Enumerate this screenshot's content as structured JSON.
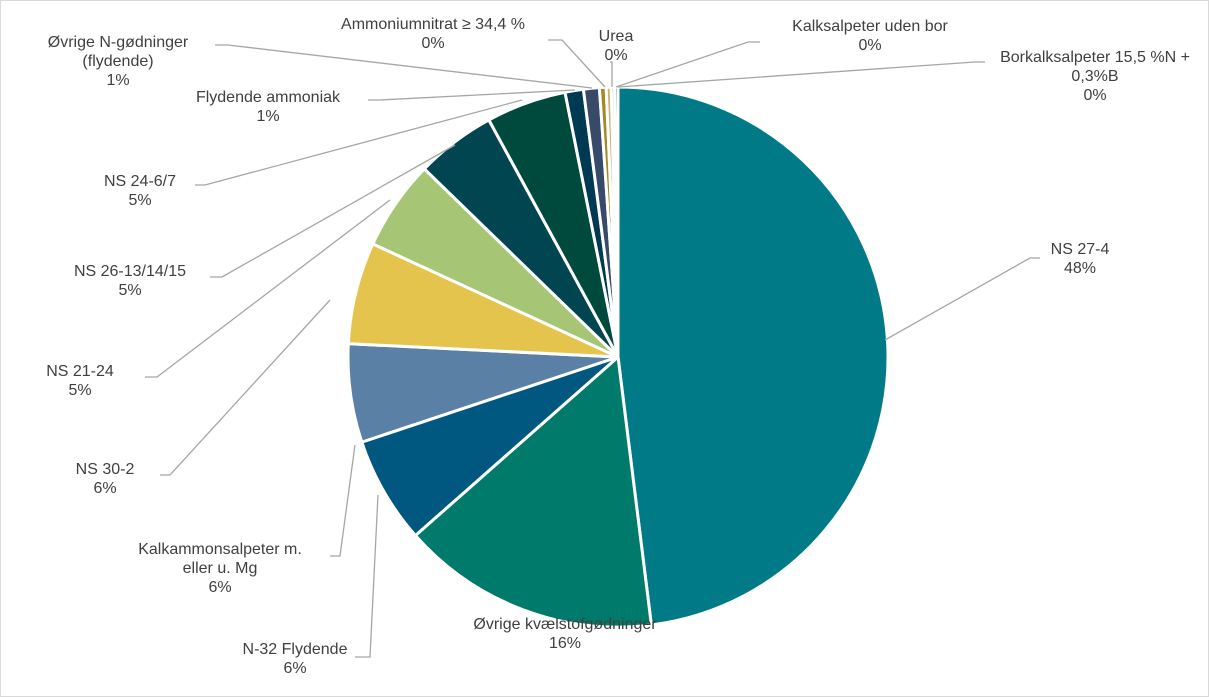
{
  "chart_data": {
    "type": "pie",
    "categories": [
      "NS 27-4",
      "Øvrige kvælstofgødninger",
      "N-32 Flydende",
      "Kalkammonsalpeter m. eller u. Mg",
      "NS 30-2",
      "NS 21-24",
      "NS 26-13/14/15",
      "NS 24-6/7",
      "Flydende ammoniak",
      "Øvrige N-gødninger (flydende)",
      "Ammoniumnitrat ≥ 34,4 %",
      "Urea",
      "Kalksalpeter uden bor",
      "Borkalksalpeter 15,5 %N + 0,3%B"
    ],
    "values": [
      48.1,
      15.5,
      6.4,
      5.9,
      6.1,
      5.4,
      4.8,
      4.8,
      1.1,
      0.95,
      0.4,
      0.3,
      0.2,
      0.2
    ],
    "value_labels": [
      "48%",
      "16%",
      "6%",
      "6%",
      "6%",
      "5%",
      "5%",
      "5%",
      "1%",
      "1%",
      "0%",
      "0%",
      "0%",
      "0%"
    ],
    "colors": [
      "#007a87",
      "#007a6a",
      "#005780",
      "#5b80a5",
      "#e5c44e",
      "#a6c676",
      "#004550",
      "#004a3d",
      "#003a52",
      "#384a6a",
      "#a08a2a",
      "#c8b07a",
      "#7f9a50",
      "#007a87"
    ]
  }
}
